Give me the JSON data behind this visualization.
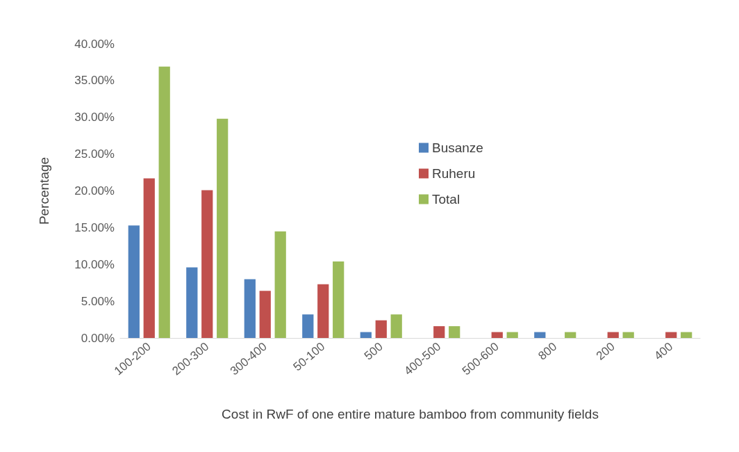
{
  "chart_data": {
    "type": "bar",
    "xlabel": "Cost in RwF of one entire mature bamboo from community fields",
    "ylabel": "Percentage",
    "categories": [
      "100-200",
      "200-300",
      "300-400",
      "50-100",
      "500",
      "400-500",
      "500-600",
      "800",
      "200",
      "400"
    ],
    "series": [
      {
        "name": "Busanze",
        "color": "#4f81bd",
        "values": [
          15.3,
          9.6,
          8.0,
          3.2,
          0.8,
          0,
          0,
          0.8,
          0,
          0
        ]
      },
      {
        "name": "Ruheru",
        "color": "#c0504d",
        "values": [
          21.7,
          20.1,
          6.4,
          7.3,
          2.4,
          1.6,
          0.8,
          0,
          0.8,
          0.8
        ]
      },
      {
        "name": "Total",
        "color": "#9bbb59",
        "values": [
          36.9,
          29.8,
          14.5,
          10.4,
          3.2,
          1.6,
          0.8,
          0.8,
          0.8,
          0.8
        ]
      }
    ],
    "ylim": [
      0,
      40
    ],
    "yticks": [
      {
        "value": 0,
        "label": "0.00%"
      },
      {
        "value": 5,
        "label": "5.00%"
      },
      {
        "value": 10,
        "label": "10.00%"
      },
      {
        "value": 15,
        "label": "15.00%"
      },
      {
        "value": 20,
        "label": "20.00%"
      },
      {
        "value": 25,
        "label": "25.00%"
      },
      {
        "value": 30,
        "label": "30.00%"
      },
      {
        "value": 35,
        "label": "35.00%"
      },
      {
        "value": 40,
        "label": "40.00%"
      }
    ],
    "grid": false,
    "legend": "top"
  }
}
